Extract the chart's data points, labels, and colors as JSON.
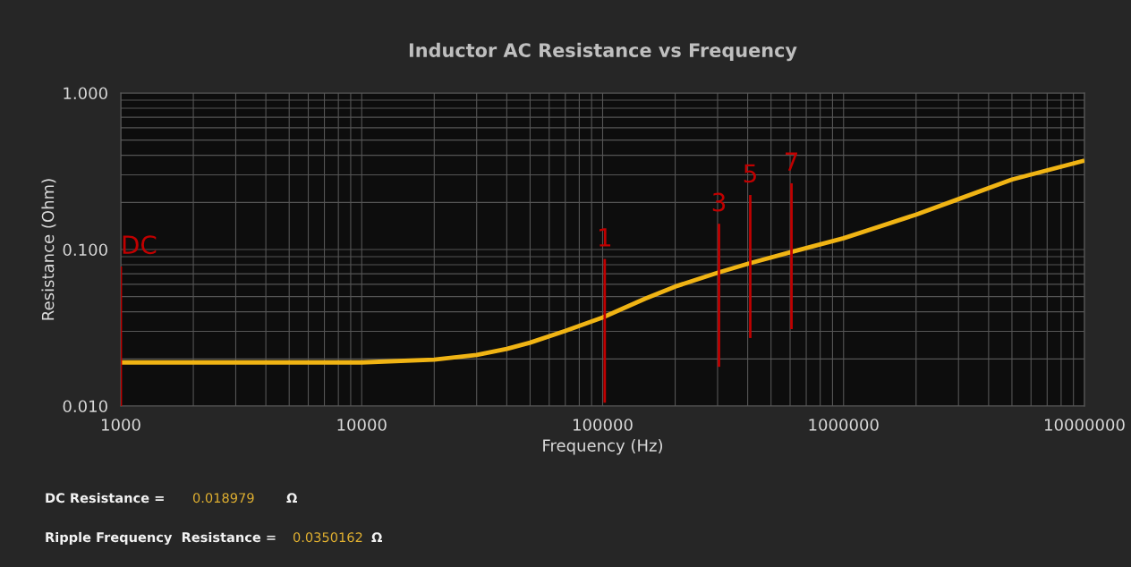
{
  "chart_data": {
    "type": "line",
    "title": "Inductor AC Resistance vs Frequency",
    "xlabel": "Frequency (Hz)",
    "ylabel": "Resistance (Ohm)",
    "log": "xy",
    "grid": true,
    "legend": false,
    "marker": "none",
    "line_style": "solid",
    "xlim": [
      1000,
      10000000
    ],
    "xticks": [
      1000,
      10000,
      100000,
      1000000,
      10000000
    ],
    "ylim": [
      0.01,
      1
    ],
    "yticks": [
      {
        "value": 0.01,
        "label": "0.010"
      },
      {
        "value": 0.1,
        "label": "0.100"
      },
      {
        "value": 1,
        "label": "1.000"
      }
    ],
    "series": [
      {
        "color": "#f0b414",
        "x": [
          1000,
          10000,
          20000,
          30000,
          40000,
          50000,
          70000,
          100000,
          150000,
          200000,
          300000,
          400000,
          600000,
          1000000,
          2000000,
          3000000,
          5000000,
          10000000
        ],
        "values": [
          0.019,
          0.019,
          0.0198,
          0.0212,
          0.0232,
          0.0254,
          0.0302,
          0.0368,
          0.0485,
          0.058,
          0.071,
          0.081,
          0.096,
          0.118,
          0.167,
          0.21,
          0.28,
          0.37
        ]
      },
      {
        "type": "line",
        "name": "DC",
        "color": "#c00000",
        "x": [
          1000,
          1000
        ],
        "values": [
          0.01,
          0.078
        ]
      },
      {
        "type": "line",
        "name": "1",
        "color": "#c00000",
        "x": [
          102000,
          102000
        ],
        "values": [
          0.0105,
          0.087
        ]
      },
      {
        "type": "line",
        "name": "3",
        "color": "#c00000",
        "x": [
          304000,
          304000
        ],
        "values": [
          0.0178,
          0.146
        ]
      },
      {
        "type": "line",
        "name": "5",
        "color": "#c00000",
        "x": [
          410000,
          410000
        ],
        "values": [
          0.0272,
          0.223
        ]
      },
      {
        "type": "line",
        "name": "7",
        "color": "#c00000",
        "x": [
          608000,
          608000
        ],
        "values": [
          0.031,
          0.265
        ]
      }
    ],
    "annotations": [
      "DC Resistance =",
      "0.018979",
      "Ω",
      "Ripple Frequency  Resistance =",
      "0.0350162",
      "Ω"
    ]
  }
}
